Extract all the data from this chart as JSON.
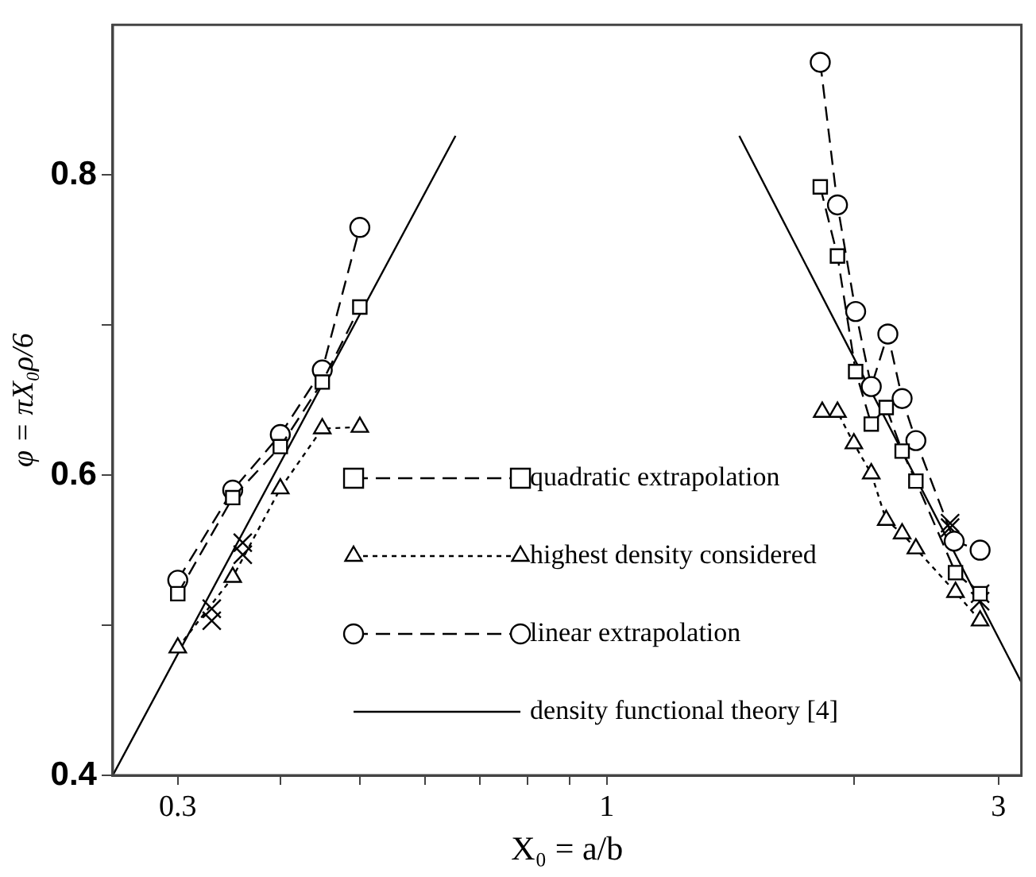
{
  "chart_data": {
    "type": "line",
    "xlabel": "X₀ = a/b",
    "ylabel": "φ = πX₀ρ/6",
    "log": "x",
    "xlim": [
      0.25,
      3.2
    ],
    "xticks": [
      0.3,
      {
        "value": 0.4,
        "label": null
      },
      {
        "value": 0.5,
        "label": null
      },
      {
        "value": 0.6,
        "label": null
      },
      {
        "value": 0.7,
        "label": null
      },
      {
        "value": 0.8,
        "label": null
      },
      {
        "value": 0.9,
        "label": null
      },
      1,
      {
        "value": 2,
        "label": null
      },
      3
    ],
    "ylim": [
      0.4,
      0.9
    ],
    "yticks": [
      0.4,
      {
        "value": 0.5,
        "label": null
      },
      0.6,
      {
        "value": 0.7,
        "label": null
      },
      0.8
    ],
    "grid": false,
    "legend": "bottom",
    "series": [
      {
        "name": "quadratic extrapolation",
        "color": "#000000",
        "marker": "square",
        "line_style": "dashed",
        "x": [
          0.3,
          0.35,
          0.4,
          0.45,
          0.5,
          1,
          1.82,
          1.91,
          2.01,
          2.1,
          2.19,
          2.29,
          2.38,
          2.66,
          2.85
        ],
        "values": [
          0.521,
          0.585,
          0.619,
          0.662,
          0.712,
          null,
          0.792,
          0.746,
          0.669,
          0.634,
          0.645,
          0.616,
          0.596,
          0.535,
          0.521
        ]
      },
      {
        "name": "highest density considered",
        "color": "#000000",
        "marker": "triangle",
        "line_style": "dotted",
        "x": [
          0.3,
          0.35,
          0.4,
          0.45,
          0.5,
          1,
          1.83,
          1.91,
          2.0,
          2.1,
          2.19,
          2.29,
          2.38,
          2.66,
          2.85
        ],
        "values": [
          0.485,
          0.532,
          0.591,
          0.631,
          0.632,
          null,
          0.642,
          0.642,
          0.621,
          0.601,
          0.57,
          0.561,
          0.551,
          0.522,
          0.503
        ]
      },
      {
        "name": "linear extrapolation",
        "color": "#000000",
        "marker": "circle",
        "line_style": "dashed",
        "x": [
          0.3,
          0.35,
          0.4,
          0.45,
          0.5,
          1,
          1.82,
          1.91,
          2.01,
          2.1,
          2.2,
          2.29,
          2.38,
          2.65,
          2.85
        ],
        "values": [
          0.53,
          0.59,
          0.627,
          0.67,
          0.765,
          null,
          0.875,
          0.78,
          0.709,
          0.659,
          0.694,
          0.651,
          0.623,
          0.556,
          0.55
        ]
      },
      {
        "name": "density functional theory [4]",
        "color": "#000000",
        "marker": "none",
        "line_style": "solid",
        "x": [
          0.25,
          0.654,
          1,
          1.45,
          3.2
        ],
        "values": [
          0.4,
          0.826,
          null,
          0.826,
          0.462
        ]
      },
      {
        "type": "scatter",
        "color": "#000000",
        "marker": "cross",
        "x": [
          0.33,
          0.33,
          0.36,
          0.36,
          2.62,
          2.62,
          2.85,
          2.85
        ],
        "values": [
          0.511,
          0.503,
          0.555,
          0.547,
          0.568,
          0.565,
          0.521,
          0.516
        ]
      }
    ]
  }
}
